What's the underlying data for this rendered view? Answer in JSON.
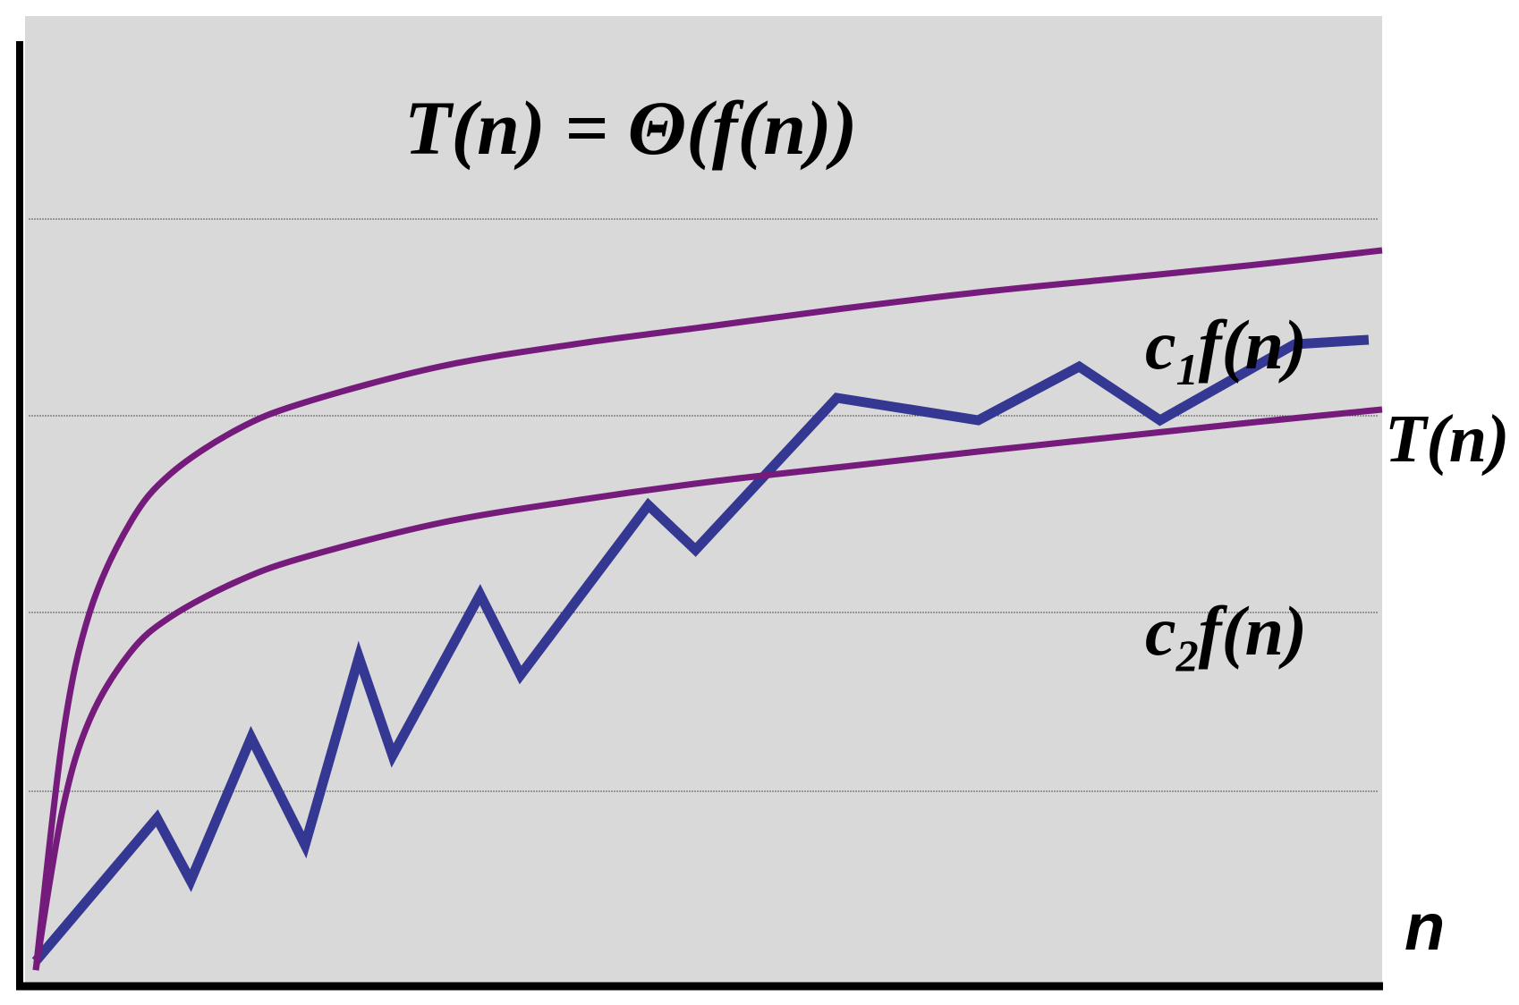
{
  "chart_data": {
    "type": "line",
    "title": "T(n) = Θ(f(n))",
    "xlabel": "n",
    "ylabel": "",
    "grid": true,
    "axis_ticks": false,
    "colors": {
      "background": "#d9d9d9",
      "upper_bound": "#741b7c",
      "lower_bound": "#741b7c",
      "t_series": "#343892",
      "axes": "#000000",
      "grid": "#555555"
    },
    "series": [
      {
        "name": "c1f(n)",
        "label_main": "c",
        "label_sub": "1",
        "label_rest": "f(n)",
        "style": "smooth",
        "x": [
          0,
          2,
          4,
          7,
          10,
          15,
          20,
          30,
          40,
          50,
          60,
          70,
          80,
          90,
          100
        ],
        "values": [
          0,
          26,
          40,
          50,
          55.5,
          60.5,
          63.5,
          67.5,
          70,
          72,
          74,
          75.8,
          77.3,
          78.8,
          80.5
        ]
      },
      {
        "name": "c2f(n)",
        "label_main": "c",
        "label_sub": "2",
        "label_rest": "f(n)",
        "style": "smooth",
        "x": [
          0,
          2,
          4,
          7,
          10,
          15,
          20,
          30,
          40,
          50,
          60,
          70,
          80,
          90,
          100
        ],
        "values": [
          0,
          18,
          28,
          35.5,
          39.5,
          43.5,
          46.2,
          50,
          52.5,
          54.6,
          56.3,
          58,
          59.6,
          61.2,
          62.7
        ]
      },
      {
        "name": "T(n)",
        "style": "polyline",
        "x": [
          0,
          9,
          11.5,
          16,
          20,
          24,
          26.5,
          33,
          36,
          45.5,
          49,
          59.5,
          70,
          77.5,
          83.5,
          93.5,
          99
        ],
        "values": [
          1,
          17,
          10,
          26,
          14,
          35,
          24,
          42,
          33,
          52,
          47,
          64,
          61.5,
          67.5,
          61.5,
          70,
          70.5
        ]
      }
    ],
    "xlim": [
      0,
      100
    ],
    "ylim": [
      0,
      100
    ]
  }
}
